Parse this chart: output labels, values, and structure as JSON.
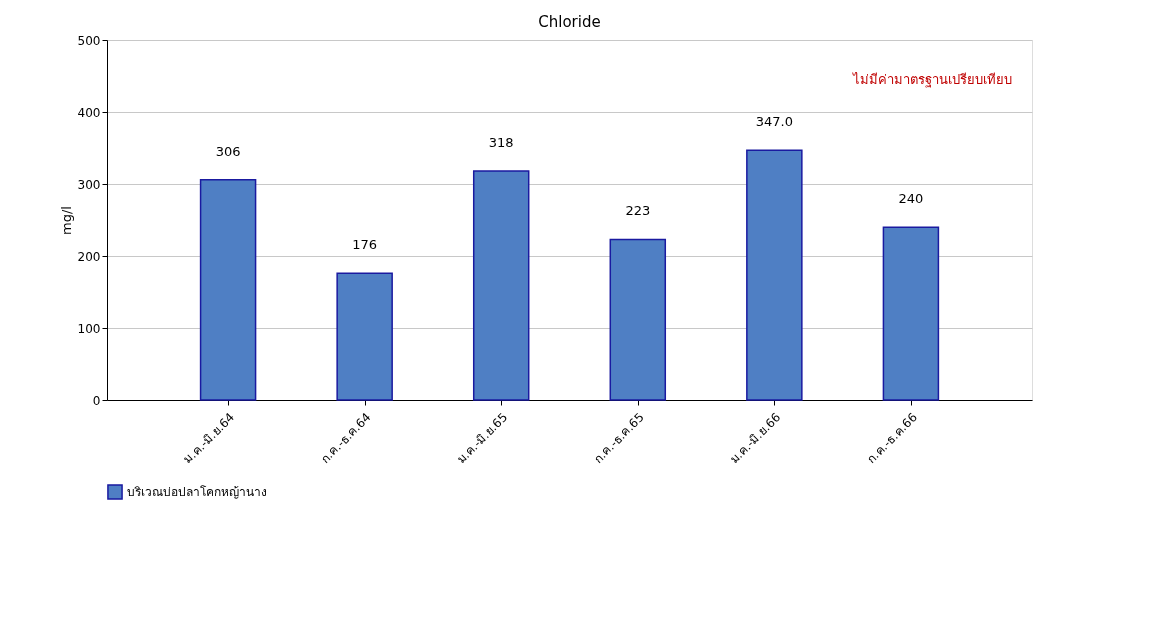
{
  "chart_data": {
    "type": "bar",
    "title": "Chloride",
    "ylabel": "mg/l",
    "categories": [
      "ม.ค.-มิ.ย.64",
      "ก.ค.-ธ.ค.64",
      "ม.ค.-มิ.ย.65",
      "ก.ค.-ธ.ค.65",
      "ม.ค.-มิ.ย.66",
      "ก.ค.-ธ.ค.66"
    ],
    "series": [
      {
        "name": "บริเวณบ่อปลาโคกหญ้านาง",
        "color": "#4f7fc4",
        "values": [
          306,
          176,
          318,
          223,
          347,
          240
        ],
        "value_labels": [
          "306",
          "176",
          "318",
          "223",
          "347.0",
          "240"
        ]
      }
    ],
    "ylim": [
      0,
      500
    ],
    "yticks": [
      0,
      100,
      200,
      300,
      400,
      500
    ],
    "grid": "y",
    "legend": "bottom",
    "annotations": [
      "ไม่มีค่ามาตรฐานเปรียบเทียบ"
    ]
  }
}
